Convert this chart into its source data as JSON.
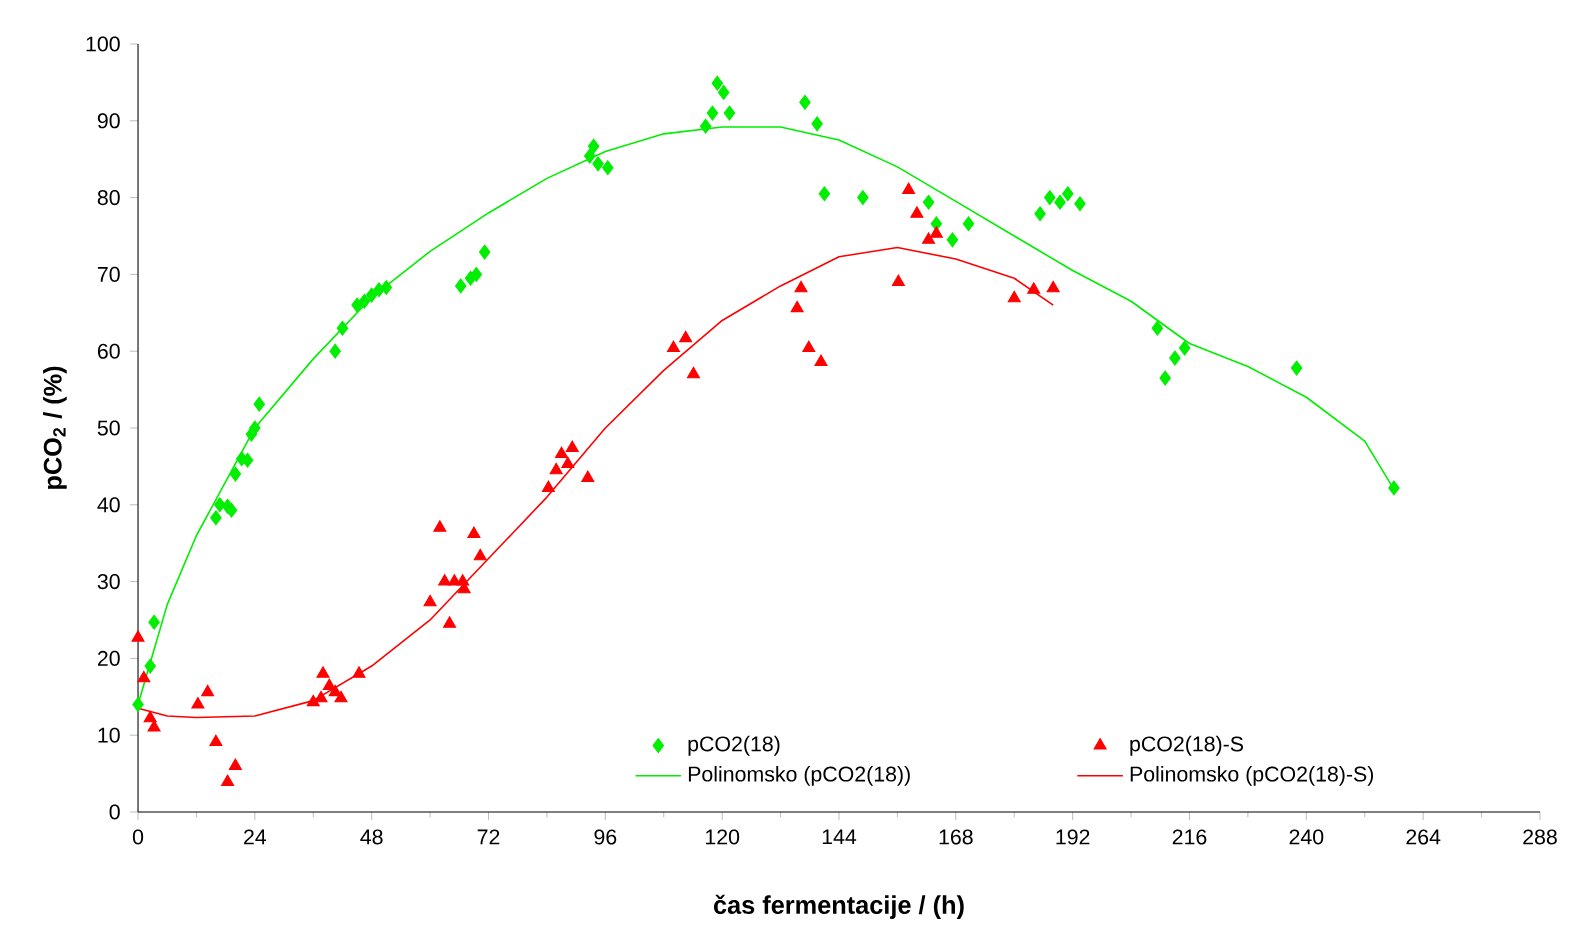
{
  "chart_data": {
    "type": "scatter",
    "xlabel": "čas fermentacije / (h)",
    "ylabel": "pCO$_{2}$ / (%)",
    "xlim": [
      0,
      288
    ],
    "xticks": [
      0,
      24,
      48,
      72,
      96,
      120,
      144,
      168,
      192,
      216,
      240,
      264,
      288
    ],
    "ylim": [
      0,
      100
    ],
    "yticks": [
      0,
      10,
      20,
      30,
      40,
      50,
      60,
      70,
      80,
      90,
      100
    ],
    "grid": false,
    "legend": "bottom",
    "series": [
      {
        "name": "pCO2(18)",
        "marker": "diamond",
        "color": "#00ee00",
        "x": [
          0,
          2.5,
          3.3,
          16,
          16.8,
          18.4,
          19.2,
          20,
          21.3,
          22.5,
          23.3,
          24,
          24.9,
          40.5,
          42,
          45,
          46.5,
          48,
          49.5,
          51,
          66.3,
          68.3,
          69.5,
          71.2,
          92.8,
          93.6,
          94.5,
          96.5,
          116.6,
          118,
          119,
          120.3,
          121.5,
          137,
          139.5,
          141,
          148.9,
          162.4,
          164,
          167.3,
          170.6,
          185.3,
          187.3,
          189.4,
          191,
          193.5,
          209.4,
          211,
          213,
          215,
          238,
          258
        ],
        "values": [
          14,
          19,
          24.7,
          38.3,
          40,
          39.8,
          39.3,
          44,
          46,
          45.8,
          49.2,
          50,
          53.1,
          60,
          63,
          66,
          66.5,
          67.3,
          68,
          68.3,
          68.5,
          69.5,
          70,
          72.9,
          85.4,
          86.7,
          84.4,
          83.9,
          89.3,
          91,
          94.9,
          93.7,
          91,
          92.4,
          89.6,
          80.5,
          80,
          79.4,
          76.6,
          74.5,
          76.6,
          77.9,
          80,
          79.4,
          80.5,
          79.2,
          63,
          56.5,
          59.1,
          60.4,
          57.8,
          42.2
        ]
      },
      {
        "name": "pCO2(18)-S",
        "marker": "triangle",
        "color": "#ff0000",
        "x": [
          0,
          1.2,
          2.5,
          3.3,
          12.3,
          14.3,
          16,
          18.4,
          20,
          36,
          37.6,
          38,
          39.3,
          40.5,
          41.7,
          45.4,
          60,
          62,
          63,
          64,
          65,
          66.7,
          67,
          69,
          70.3,
          84.3,
          85.9,
          87,
          88.3,
          89.2,
          92.4,
          110,
          112.5,
          114.1,
          135.4,
          136.2,
          137.8,
          140.3,
          156.2,
          158.3,
          160,
          162.4,
          164,
          180,
          184,
          188
        ],
        "values": [
          22.7,
          17.4,
          12.2,
          11,
          14,
          15.6,
          9.1,
          3.9,
          6,
          14.3,
          14.8,
          18,
          16.4,
          15.6,
          14.8,
          18,
          27.3,
          37,
          30,
          24.5,
          30,
          30,
          29,
          36.2,
          33.3,
          42.2,
          44.5,
          46.6,
          45.3,
          47.4,
          43.5,
          60.4,
          61.7,
          57,
          65.6,
          68.2,
          60.4,
          58.6,
          69,
          81,
          77.9,
          74.5,
          75.3,
          66.9,
          68,
          68.2
        ]
      },
      {
        "name": "Polinomsko (pCO2(18))",
        "type": "line",
        "marker": "none",
        "line_style": "solid",
        "color": "#00ee00",
        "x": [
          0,
          6,
          12,
          24,
          36,
          48,
          60,
          72,
          84,
          96,
          108,
          120,
          132,
          144,
          156,
          168,
          180,
          192,
          204,
          216,
          228,
          240,
          252,
          258
        ],
        "values": [
          14,
          27,
          36,
          50,
          59,
          67,
          73,
          78,
          82.5,
          86,
          88.3,
          89.2,
          89.2,
          87.5,
          84,
          79.5,
          75,
          70.5,
          66.5,
          61,
          58,
          54,
          48.3,
          42
        ]
      },
      {
        "name": "Polinomsko (pCO2(18)-S)",
        "type": "line",
        "marker": "none",
        "line_style": "solid",
        "color": "#ff0000",
        "x": [
          0,
          6,
          12,
          24,
          36,
          48,
          60,
          72,
          84,
          96,
          108,
          120,
          132,
          144,
          156,
          168,
          180,
          188
        ],
        "values": [
          13.5,
          12.5,
          12.3,
          12.5,
          14.5,
          19,
          25,
          33,
          41,
          50,
          57.5,
          64,
          68.5,
          72.3,
          73.5,
          72,
          69.5,
          66
        ]
      }
    ]
  }
}
